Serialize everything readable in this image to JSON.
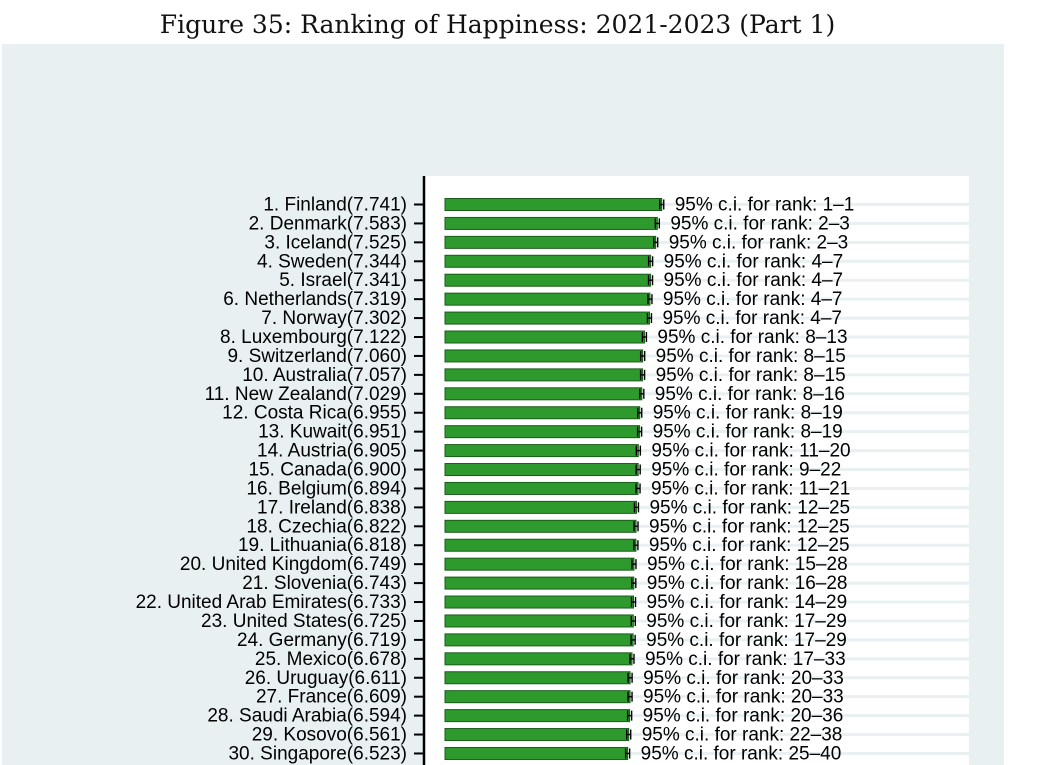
{
  "title": "Figure 35: Ranking of Happiness: 2021-2023 (Part 1)",
  "colors": {
    "panel_background": "#e8f0f2",
    "plot_background": "#ffffff",
    "bar_fill": "#2e9a2e",
    "bar_stroke": "#1a5c1a",
    "axis": "#000000",
    "text": "#000000"
  },
  "chart_data": {
    "type": "bar",
    "orientation": "horizontal",
    "grid": true,
    "legend": "none",
    "row_labels": [
      "1. Finland(7.741)",
      "2. Denmark(7.583)",
      "3. Iceland(7.525)",
      "4. Sweden(7.344)",
      "5. Israel(7.341)",
      "6. Netherlands(7.319)",
      "7. Norway(7.302)",
      "8. Luxembourg(7.122)",
      "9. Switzerland(7.060)",
      "10. Australia(7.057)",
      "11. New Zealand(7.029)",
      "12. Costa Rica(6.955)",
      "13. Kuwait(6.951)",
      "14. Austria(6.905)",
      "15. Canada(6.900)",
      "16. Belgium(6.894)",
      "17. Ireland(6.838)",
      "18. Czechia(6.822)",
      "19. Lithuania(6.818)",
      "20. United Kingdom(6.749)",
      "21. Slovenia(6.743)",
      "22. United Arab Emirates(6.733)",
      "23. United States(6.725)",
      "24. Germany(6.719)",
      "25. Mexico(6.678)",
      "26. Uruguay(6.611)",
      "27. France(6.609)",
      "28. Saudi Arabia(6.594)",
      "29. Kosovo(6.561)",
      "30. Singapore(6.523)"
    ],
    "values": [
      7.741,
      7.583,
      7.525,
      7.344,
      7.341,
      7.319,
      7.302,
      7.122,
      7.06,
      7.057,
      7.029,
      6.955,
      6.951,
      6.905,
      6.9,
      6.894,
      6.838,
      6.822,
      6.818,
      6.749,
      6.743,
      6.733,
      6.725,
      6.719,
      6.678,
      6.611,
      6.609,
      6.594,
      6.561,
      6.523
    ],
    "ci_labels": [
      "95% c.i. for rank: 1–1",
      "95% c.i. for rank: 2–3",
      "95% c.i. for rank: 2–3",
      "95% c.i. for rank: 4–7",
      "95% c.i. for rank: 4–7",
      "95% c.i. for rank: 4–7",
      "95% c.i. for rank: 4–7",
      "95% c.i. for rank: 8–13",
      "95% c.i. for rank: 8–15",
      "95% c.i. for rank: 8–15",
      "95% c.i. for rank: 8–16",
      "95% c.i. for rank: 8–19",
      "95% c.i. for rank: 8–19",
      "95% c.i. for rank: 11–20",
      "95% c.i. for rank: 9–22",
      "95% c.i. for rank: 11–21",
      "95% c.i. for rank: 12–25",
      "95% c.i. for rank: 12–25",
      "95% c.i. for rank: 12–25",
      "95% c.i. for rank: 15–28",
      "95% c.i. for rank: 16–28",
      "95% c.i. for rank: 14–29",
      "95% c.i. for rank: 17–29",
      "95% c.i. for rank: 17–29",
      "95% c.i. for rank: 17–33",
      "95% c.i. for rank: 20–33",
      "95% c.i. for rank: 20–33",
      "95% c.i. for rank: 20–36",
      "95% c.i. for rank: 22–38",
      "95% c.i. for rank: 25–40"
    ]
  }
}
